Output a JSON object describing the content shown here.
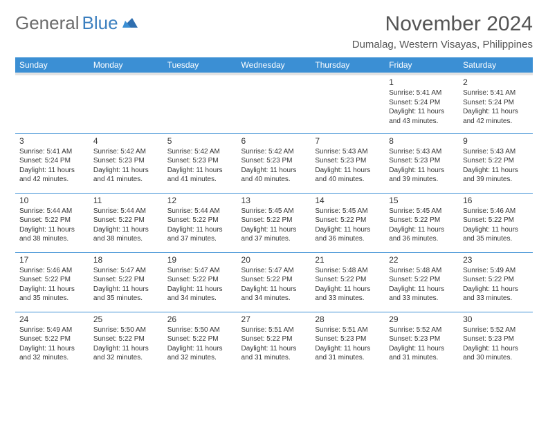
{
  "logo": {
    "gray": "General",
    "blue": "Blue"
  },
  "title": "November 2024",
  "location": "Dumalag, Western Visayas, Philippines",
  "styling": {
    "header_bg": "#3b8fd4",
    "header_text": "#ffffff",
    "border_color": "#3b8fd4",
    "subheader_bg": "#e3e3e3",
    "body_text": "#333333",
    "title_fontsize": 30,
    "location_fontsize": 15,
    "dayheader_fontsize": 12,
    "cell_fontsize": 10,
    "page_bg": "#ffffff"
  },
  "day_headers": [
    "Sunday",
    "Monday",
    "Tuesday",
    "Wednesday",
    "Thursday",
    "Friday",
    "Saturday"
  ],
  "weeks": [
    [
      null,
      null,
      null,
      null,
      null,
      {
        "n": "1",
        "sr": "Sunrise: 5:41 AM",
        "ss": "Sunset: 5:24 PM",
        "dl1": "Daylight: 11 hours",
        "dl2": "and 43 minutes."
      },
      {
        "n": "2",
        "sr": "Sunrise: 5:41 AM",
        "ss": "Sunset: 5:24 PM",
        "dl1": "Daylight: 11 hours",
        "dl2": "and 42 minutes."
      }
    ],
    [
      {
        "n": "3",
        "sr": "Sunrise: 5:41 AM",
        "ss": "Sunset: 5:24 PM",
        "dl1": "Daylight: 11 hours",
        "dl2": "and 42 minutes."
      },
      {
        "n": "4",
        "sr": "Sunrise: 5:42 AM",
        "ss": "Sunset: 5:23 PM",
        "dl1": "Daylight: 11 hours",
        "dl2": "and 41 minutes."
      },
      {
        "n": "5",
        "sr": "Sunrise: 5:42 AM",
        "ss": "Sunset: 5:23 PM",
        "dl1": "Daylight: 11 hours",
        "dl2": "and 41 minutes."
      },
      {
        "n": "6",
        "sr": "Sunrise: 5:42 AM",
        "ss": "Sunset: 5:23 PM",
        "dl1": "Daylight: 11 hours",
        "dl2": "and 40 minutes."
      },
      {
        "n": "7",
        "sr": "Sunrise: 5:43 AM",
        "ss": "Sunset: 5:23 PM",
        "dl1": "Daylight: 11 hours",
        "dl2": "and 40 minutes."
      },
      {
        "n": "8",
        "sr": "Sunrise: 5:43 AM",
        "ss": "Sunset: 5:23 PM",
        "dl1": "Daylight: 11 hours",
        "dl2": "and 39 minutes."
      },
      {
        "n": "9",
        "sr": "Sunrise: 5:43 AM",
        "ss": "Sunset: 5:22 PM",
        "dl1": "Daylight: 11 hours",
        "dl2": "and 39 minutes."
      }
    ],
    [
      {
        "n": "10",
        "sr": "Sunrise: 5:44 AM",
        "ss": "Sunset: 5:22 PM",
        "dl1": "Daylight: 11 hours",
        "dl2": "and 38 minutes."
      },
      {
        "n": "11",
        "sr": "Sunrise: 5:44 AM",
        "ss": "Sunset: 5:22 PM",
        "dl1": "Daylight: 11 hours",
        "dl2": "and 38 minutes."
      },
      {
        "n": "12",
        "sr": "Sunrise: 5:44 AM",
        "ss": "Sunset: 5:22 PM",
        "dl1": "Daylight: 11 hours",
        "dl2": "and 37 minutes."
      },
      {
        "n": "13",
        "sr": "Sunrise: 5:45 AM",
        "ss": "Sunset: 5:22 PM",
        "dl1": "Daylight: 11 hours",
        "dl2": "and 37 minutes."
      },
      {
        "n": "14",
        "sr": "Sunrise: 5:45 AM",
        "ss": "Sunset: 5:22 PM",
        "dl1": "Daylight: 11 hours",
        "dl2": "and 36 minutes."
      },
      {
        "n": "15",
        "sr": "Sunrise: 5:45 AM",
        "ss": "Sunset: 5:22 PM",
        "dl1": "Daylight: 11 hours",
        "dl2": "and 36 minutes."
      },
      {
        "n": "16",
        "sr": "Sunrise: 5:46 AM",
        "ss": "Sunset: 5:22 PM",
        "dl1": "Daylight: 11 hours",
        "dl2": "and 35 minutes."
      }
    ],
    [
      {
        "n": "17",
        "sr": "Sunrise: 5:46 AM",
        "ss": "Sunset: 5:22 PM",
        "dl1": "Daylight: 11 hours",
        "dl2": "and 35 minutes."
      },
      {
        "n": "18",
        "sr": "Sunrise: 5:47 AM",
        "ss": "Sunset: 5:22 PM",
        "dl1": "Daylight: 11 hours",
        "dl2": "and 35 minutes."
      },
      {
        "n": "19",
        "sr": "Sunrise: 5:47 AM",
        "ss": "Sunset: 5:22 PM",
        "dl1": "Daylight: 11 hours",
        "dl2": "and 34 minutes."
      },
      {
        "n": "20",
        "sr": "Sunrise: 5:47 AM",
        "ss": "Sunset: 5:22 PM",
        "dl1": "Daylight: 11 hours",
        "dl2": "and 34 minutes."
      },
      {
        "n": "21",
        "sr": "Sunrise: 5:48 AM",
        "ss": "Sunset: 5:22 PM",
        "dl1": "Daylight: 11 hours",
        "dl2": "and 33 minutes."
      },
      {
        "n": "22",
        "sr": "Sunrise: 5:48 AM",
        "ss": "Sunset: 5:22 PM",
        "dl1": "Daylight: 11 hours",
        "dl2": "and 33 minutes."
      },
      {
        "n": "23",
        "sr": "Sunrise: 5:49 AM",
        "ss": "Sunset: 5:22 PM",
        "dl1": "Daylight: 11 hours",
        "dl2": "and 33 minutes."
      }
    ],
    [
      {
        "n": "24",
        "sr": "Sunrise: 5:49 AM",
        "ss": "Sunset: 5:22 PM",
        "dl1": "Daylight: 11 hours",
        "dl2": "and 32 minutes."
      },
      {
        "n": "25",
        "sr": "Sunrise: 5:50 AM",
        "ss": "Sunset: 5:22 PM",
        "dl1": "Daylight: 11 hours",
        "dl2": "and 32 minutes."
      },
      {
        "n": "26",
        "sr": "Sunrise: 5:50 AM",
        "ss": "Sunset: 5:22 PM",
        "dl1": "Daylight: 11 hours",
        "dl2": "and 32 minutes."
      },
      {
        "n": "27",
        "sr": "Sunrise: 5:51 AM",
        "ss": "Sunset: 5:22 PM",
        "dl1": "Daylight: 11 hours",
        "dl2": "and 31 minutes."
      },
      {
        "n": "28",
        "sr": "Sunrise: 5:51 AM",
        "ss": "Sunset: 5:23 PM",
        "dl1": "Daylight: 11 hours",
        "dl2": "and 31 minutes."
      },
      {
        "n": "29",
        "sr": "Sunrise: 5:52 AM",
        "ss": "Sunset: 5:23 PM",
        "dl1": "Daylight: 11 hours",
        "dl2": "and 31 minutes."
      },
      {
        "n": "30",
        "sr": "Sunrise: 5:52 AM",
        "ss": "Sunset: 5:23 PM",
        "dl1": "Daylight: 11 hours",
        "dl2": "and 30 minutes."
      }
    ]
  ]
}
